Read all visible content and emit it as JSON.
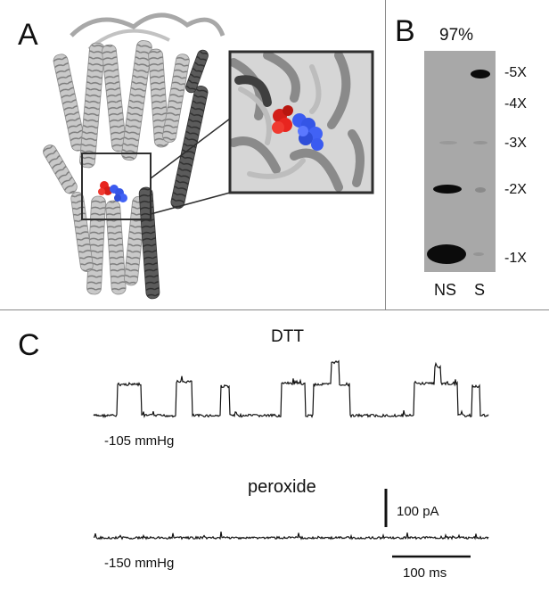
{
  "panels": {
    "a": {
      "letter": "A"
    },
    "b": {
      "letter": "B",
      "percent": "97%",
      "lanes": [
        "NS",
        "S"
      ],
      "markers": [
        "-5X",
        "-4X",
        "-3X",
        "-2X",
        "-1X"
      ]
    },
    "c": {
      "letter": "C",
      "trace1": {
        "label": "DTT",
        "pressure": "-105 mmHg"
      },
      "trace2": {
        "label": "peroxide",
        "pressure": "-150 mmHg"
      },
      "scale": {
        "current": "100 pA",
        "time": "100 ms"
      }
    }
  },
  "colors": {
    "ribbon_light": "#b4b4b4",
    "ribbon_dark": "#555555",
    "residue_red": "#e8251f",
    "residue_blue": "#3b5bf0",
    "gel_bg": "#a8a8a8",
    "band": "#0b0b0b"
  },
  "icons": [
    "protein-ribbon-structure",
    "zoom-inset",
    "gel-blot"
  ]
}
